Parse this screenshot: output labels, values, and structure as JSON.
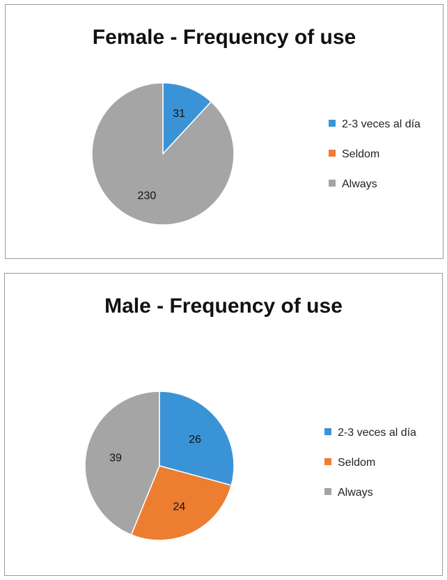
{
  "chart_data": [
    {
      "type": "pie",
      "title": "Female - Frequency of use",
      "categories": [
        "2-3 veces al día",
        "Seldom",
        "Always"
      ],
      "values": [
        31,
        0,
        230
      ],
      "data_labels": [
        "31",
        "",
        "230"
      ],
      "colors": [
        "#3a93d6",
        "#ed7d31",
        "#a5a5a5"
      ],
      "legend": "right"
    },
    {
      "type": "pie",
      "title": "Male - Frequency of use",
      "categories": [
        "2-3 veces al día",
        "Seldom",
        "Always"
      ],
      "values": [
        26,
        24,
        39
      ],
      "data_labels": [
        "26",
        "24",
        "39"
      ],
      "colors": [
        "#3a93d6",
        "#ed7d31",
        "#a5a5a5"
      ],
      "legend": "right"
    }
  ]
}
